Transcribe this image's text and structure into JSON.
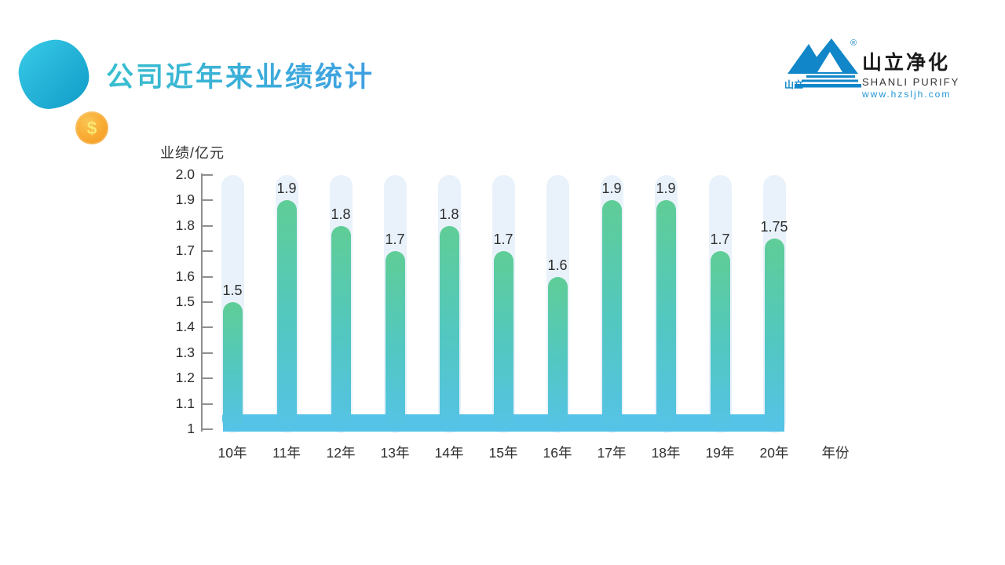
{
  "slide": {
    "title": "公司近年来业绩统计",
    "coin_symbol": "$"
  },
  "logo": {
    "mark_text": "山立",
    "registered_mark": "®",
    "name_cn": "山立净化",
    "name_en": "SHANLI PURIFY",
    "website": "www.hzsljh.com"
  },
  "colors": {
    "title_left": "#38BFCE",
    "title_right": "#3F9FE2",
    "blob_light": "#35C6E4",
    "blob_dark": "#14A0CB",
    "logo_blue": "#1186C8",
    "coin_orange": "#F8A930",
    "axis_gray": "#8F8F8F"
  },
  "chart_data": {
    "type": "bar",
    "title": "公司近年来业绩统计",
    "ylabel": "业绩/亿元",
    "xlabel": "年份",
    "categories": [
      "10年",
      "11年",
      "12年",
      "13年",
      "14年",
      "15年",
      "16年",
      "17年",
      "18年",
      "19年",
      "20年"
    ],
    "values": [
      1.5,
      1.9,
      1.8,
      1.7,
      1.8,
      1.7,
      1.6,
      1.9,
      1.9,
      1.7,
      1.75
    ],
    "value_labels": [
      "1.5",
      "1.9",
      "1.8",
      "1.7",
      "1.8",
      "1.7",
      "1.6",
      "1.9",
      "1.9",
      "1.7",
      "1.75"
    ],
    "ylim": [
      1,
      2
    ],
    "yticks": [
      "2.0",
      "1.9",
      "1.8",
      "1.7",
      "1.6",
      "1.5",
      "1.4",
      "1.3",
      "1.2",
      "1.1",
      "1"
    ],
    "grid": false,
    "legend": "none",
    "bar_color_top": "#5FCD96",
    "bar_color_mid": "#52C7C2",
    "bar_color_bottom": "#55C3E8",
    "track_color": "#E9F2FB"
  }
}
